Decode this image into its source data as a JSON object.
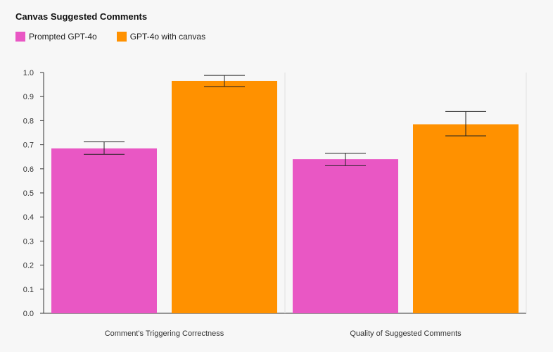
{
  "chart_data": {
    "type": "bar",
    "title": "Canvas Suggested Comments",
    "categories": [
      "Comment's Triggering Correctness",
      "Quality of Suggested Comments"
    ],
    "series": [
      {
        "name": "Prompted GPT-4o",
        "color": "#e957c4",
        "values": [
          0.685,
          0.64
        ],
        "error_low": [
          0.66,
          0.613
        ],
        "error_high": [
          0.712,
          0.665
        ]
      },
      {
        "name": "GPT-4o with canvas",
        "color": "#ff9100",
        "values": [
          0.965,
          0.785
        ],
        "error_low": [
          0.942,
          0.737
        ],
        "error_high": [
          0.988,
          0.838
        ]
      }
    ],
    "ylim": [
      0,
      1.0
    ],
    "yticks": [
      "0.0",
      "0.1",
      "0.2",
      "0.3",
      "0.4",
      "0.5",
      "0.6",
      "0.7",
      "0.8",
      "0.9",
      "1.0"
    ],
    "xlabel": "",
    "ylabel": "",
    "legend_position": "top-left",
    "grid": false
  }
}
